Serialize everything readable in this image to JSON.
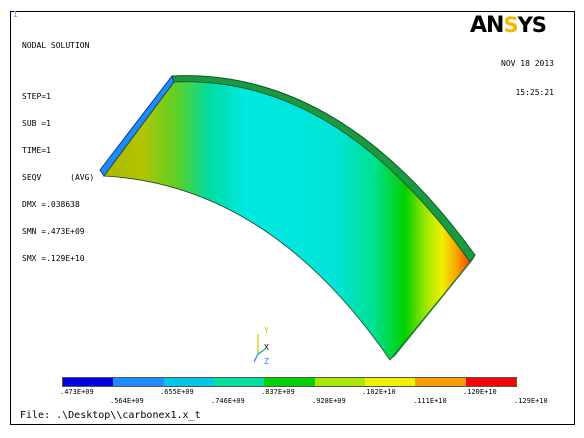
{
  "window_number": "1",
  "info": {
    "title": "NODAL SOLUTION",
    "lines": [
      "STEP=1",
      "SUB =1",
      "TIME=1",
      "SEQV      (AVG)",
      "DMX =.038638",
      "SMN =.473E+09",
      "SMX =.129E+10"
    ]
  },
  "logo": {
    "prefix": "AN",
    "accent": "S",
    "suffix": "YS"
  },
  "date": "NOV 18 2013",
  "time": "15:25:21",
  "legend": {
    "colors": [
      "#0000e0",
      "#1e8cff",
      "#00c8e8",
      "#00e0a0",
      "#00d000",
      "#a8e800",
      "#f0f000",
      "#f8a000",
      "#ff0000"
    ],
    "labels_top": [
      ".473E+09",
      ".655E+09",
      ".837E+09",
      ".102E+10",
      ".120E+10"
    ],
    "labels_bottom": [
      ".564E+09",
      ".746E+09",
      ".928E+09",
      ".111E+10",
      ".129E+10"
    ]
  },
  "triad": {
    "y": "Y",
    "x": "X",
    "z": "Z"
  },
  "file_label": "File: .\\Desktop\\\\carbonex1.x_t"
}
